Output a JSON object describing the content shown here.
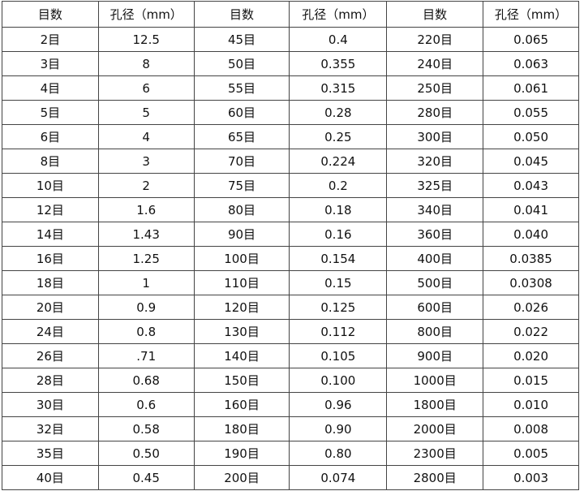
{
  "headers": [
    "目数",
    "孔径（mm）",
    "目数",
    "孔径（mm）",
    "目数",
    "孔径（mm）"
  ],
  "rows": [
    [
      "2目",
      "12.5",
      "45目",
      "0.4",
      "220目",
      "0.065"
    ],
    [
      "3目",
      "8",
      "50目",
      "0.355",
      "240目",
      "0.063"
    ],
    [
      "4目",
      "6",
      "55目",
      "0.315",
      "250目",
      "0.061"
    ],
    [
      "5目",
      "5",
      "60目",
      "0.28",
      "280目",
      "0.055"
    ],
    [
      "6目",
      "4",
      "65目",
      "0.25",
      "300目",
      "0.050"
    ],
    [
      "8目",
      "3",
      "70目",
      "0.224",
      "320目",
      "0.045"
    ],
    [
      "10目",
      "2",
      "75目",
      "0.2",
      "325目",
      "0.043"
    ],
    [
      "12目",
      "1.6",
      "80目",
      "0.18",
      "340目",
      "0.041"
    ],
    [
      "14目",
      "1.43",
      "90目",
      "0.16",
      "360目",
      "0.040"
    ],
    [
      "16目",
      "1.25",
      "100目",
      "0.154",
      "400目",
      "0.0385"
    ],
    [
      "18目",
      "1",
      "110目",
      "0.15",
      "500目",
      "0.0308"
    ],
    [
      "20目",
      "0.9",
      "120目",
      "0.125",
      "600目",
      "0.026"
    ],
    [
      "24目",
      "0.8",
      "130目",
      "0.112",
      "800目",
      "0.022"
    ],
    [
      "26目",
      ".71",
      "140目",
      "0.105",
      "900目",
      "0.020"
    ],
    [
      "28目",
      "0.68",
      "150目",
      "0.100",
      "1000目",
      "0.015"
    ],
    [
      "30目",
      "0.6",
      "160目",
      "0.96",
      "1800目",
      "0.010"
    ],
    [
      "32目",
      "0.58",
      "180目",
      "0.90",
      "2000目",
      "0.008"
    ],
    [
      "35目",
      "0.50",
      "190目",
      "0.80",
      "2300目",
      "0.005"
    ],
    [
      "40目",
      "0.45",
      "200目",
      "0.074",
      "2800目",
      "0.003"
    ]
  ]
}
